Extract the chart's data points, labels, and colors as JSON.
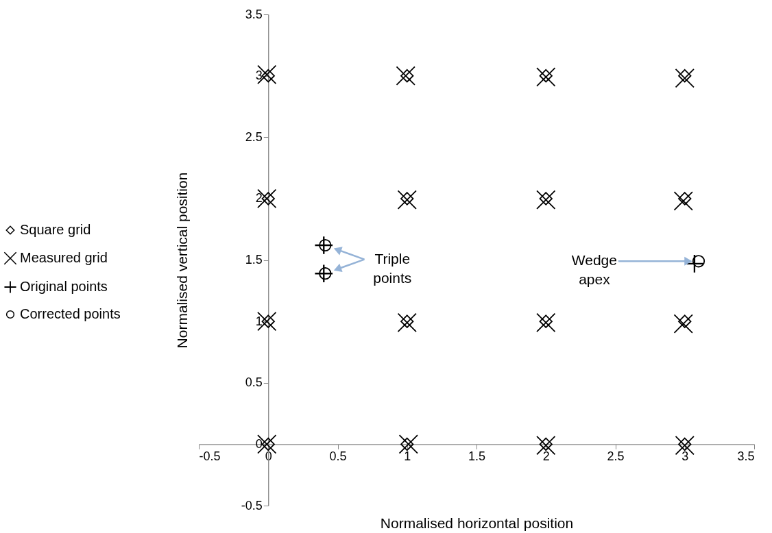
{
  "chart_data": {
    "type": "scatter",
    "xlabel": "Normalised horizontal position",
    "ylabel": "Normalised vertical position",
    "xlim": [
      -0.5,
      3.5
    ],
    "ylim": [
      -0.5,
      3.5
    ],
    "xticks": [
      -0.5,
      0,
      0.5,
      1,
      1.5,
      2,
      2.5,
      3,
      3.5
    ],
    "yticks": [
      -0.5,
      0,
      0.5,
      1,
      1.5,
      2,
      2.5,
      3,
      3.5
    ],
    "grid": false,
    "legend": "left",
    "series": [
      {
        "name": "Square grid",
        "color": "#000000",
        "marker": "diamond",
        "x": [
          0,
          1,
          2,
          3,
          0,
          1,
          2,
          3,
          0,
          1,
          2,
          3,
          0,
          1,
          2,
          3
        ],
        "values": [
          3,
          3,
          3,
          3,
          2,
          2,
          2,
          2,
          1,
          1,
          1,
          1,
          0,
          0,
          0,
          0
        ]
      },
      {
        "name": "Measured grid",
        "color": "#000000",
        "marker": "x",
        "x": [
          -0.01,
          0.99,
          2.0,
          3.0,
          -0.01,
          1.0,
          2.0,
          2.99,
          -0.01,
          1.0,
          2.0,
          2.99,
          -0.01,
          1.01,
          2.0,
          3.0
        ],
        "values": [
          3.01,
          3.0,
          2.99,
          2.98,
          2.0,
          1.99,
          1.99,
          1.98,
          1.0,
          0.99,
          0.99,
          0.98,
          0,
          0,
          -0.01,
          -0.01
        ]
      },
      {
        "name": "Original points",
        "color": "#000000",
        "marker": "cross",
        "x": [
          0.4,
          0.4,
          3.07
        ],
        "values": [
          1.62,
          1.39,
          1.47
        ]
      },
      {
        "name": "Corrected points",
        "color": "#000000",
        "marker": "circle",
        "x": [
          0.41,
          0.41,
          3.1
        ],
        "values": [
          1.62,
          1.39,
          1.49
        ]
      }
    ],
    "annotations": [
      "Triple points",
      {
        "text": "Wedge apex",
        "x": 3.06,
        "y": 1.49
      }
    ]
  }
}
